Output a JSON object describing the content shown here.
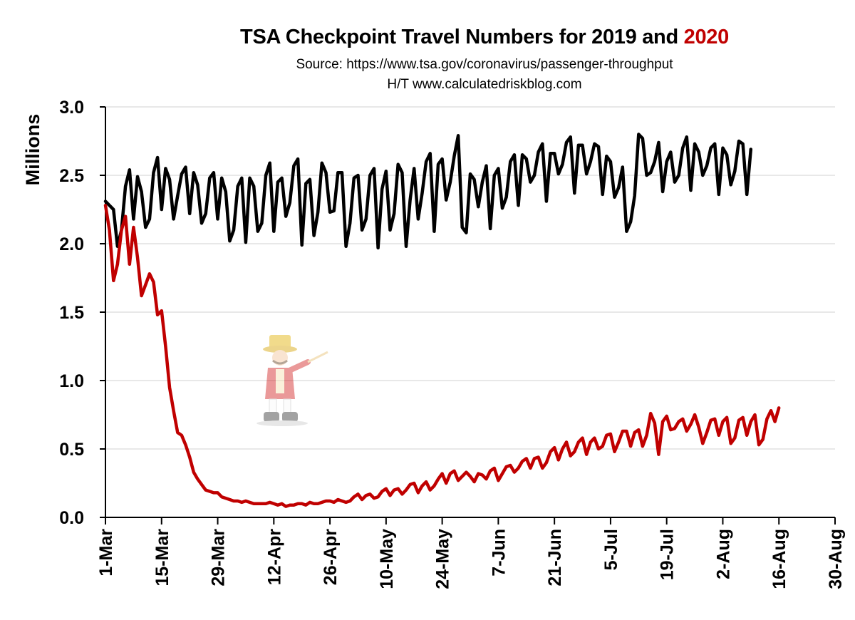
{
  "title": {
    "prefix": "TSA Checkpoint Travel Numbers for 2019 and ",
    "highlight": "2020",
    "highlight_color": "#c00000"
  },
  "subtitle_lines": [
    "Source: https://www.tsa.gov/coronavirus/passenger-throughput",
    "H/T www.calculatedriskblog.com"
  ],
  "watermark": {
    "icon": "ringmaster-mascot-icon"
  },
  "chart_data": {
    "type": "line",
    "title": "TSA Checkpoint Travel Numbers for 2019 and 2020",
    "ylabel": "Millions",
    "xlabel": "",
    "ylim": [
      0,
      3.0
    ],
    "yticks": [
      0.0,
      0.5,
      1.0,
      1.5,
      2.0,
      2.5,
      3.0
    ],
    "ytick_labels": [
      "0.0",
      "0.5",
      "1.0",
      "1.5",
      "2.0",
      "2.5",
      "3.0"
    ],
    "x_start_date": "2020-03-01",
    "x_end_date": "2020-08-30",
    "xtick_labels": [
      "1-Mar",
      "15-Mar",
      "29-Mar",
      "12-Apr",
      "26-Apr",
      "10-May",
      "24-May",
      "7-Jun",
      "21-Jun",
      "5-Jul",
      "19-Jul",
      "2-Aug",
      "16-Aug",
      "30-Aug"
    ],
    "xtick_dates": [
      "2020-03-01",
      "2020-03-15",
      "2020-03-29",
      "2020-04-12",
      "2020-04-26",
      "2020-05-10",
      "2020-05-24",
      "2020-06-07",
      "2020-06-21",
      "2020-07-05",
      "2020-07-19",
      "2020-08-02",
      "2020-08-16",
      "2020-08-30"
    ],
    "grid": "horizontal",
    "series": [
      {
        "name": "2019",
        "color": "#000000",
        "start_date": "2020-03-01",
        "values": [
          2.31,
          2.28,
          2.25,
          1.98,
          2.1,
          2.42,
          2.54,
          2.18,
          2.49,
          2.38,
          2.12,
          2.18,
          2.52,
          2.63,
          2.25,
          2.55,
          2.47,
          2.18,
          2.35,
          2.51,
          2.56,
          2.22,
          2.52,
          2.43,
          2.15,
          2.22,
          2.48,
          2.52,
          2.18,
          2.48,
          2.38,
          2.02,
          2.1,
          2.42,
          2.48,
          2.01,
          2.48,
          2.42,
          2.09,
          2.15,
          2.5,
          2.59,
          2.09,
          2.45,
          2.48,
          2.2,
          2.3,
          2.57,
          2.62,
          1.99,
          2.44,
          2.47,
          2.06,
          2.23,
          2.59,
          2.52,
          2.23,
          2.24,
          2.52,
          2.52,
          1.98,
          2.15,
          2.48,
          2.5,
          2.1,
          2.18,
          2.5,
          2.55,
          1.97,
          2.4,
          2.53,
          2.1,
          2.22,
          2.58,
          2.52,
          1.98,
          2.32,
          2.55,
          2.18,
          2.37,
          2.6,
          2.66,
          2.09,
          2.58,
          2.62,
          2.32,
          2.45,
          2.64,
          2.79,
          2.12,
          2.08,
          2.51,
          2.47,
          2.27,
          2.45,
          2.57,
          2.11,
          2.5,
          2.55,
          2.26,
          2.34,
          2.6,
          2.65,
          2.28,
          2.65,
          2.62,
          2.45,
          2.5,
          2.67,
          2.73,
          2.31,
          2.66,
          2.66,
          2.51,
          2.58,
          2.74,
          2.78,
          2.37,
          2.72,
          2.72,
          2.51,
          2.6,
          2.73,
          2.71,
          2.36,
          2.64,
          2.6,
          2.34,
          2.41,
          2.56,
          2.09,
          2.16,
          2.35,
          2.8,
          2.77,
          2.5,
          2.52,
          2.6,
          2.74,
          2.38,
          2.6,
          2.67,
          2.45,
          2.5,
          2.7,
          2.78,
          2.39,
          2.73,
          2.67,
          2.5,
          2.57,
          2.7,
          2.73,
          2.36,
          2.7,
          2.65,
          2.43,
          2.53,
          2.75,
          2.73,
          2.36,
          2.69
        ]
      },
      {
        "name": "2020",
        "color": "#c00000",
        "start_date": "2020-03-01",
        "values": [
          2.28,
          2.1,
          1.73,
          1.85,
          2.1,
          2.2,
          1.85,
          2.12,
          1.9,
          1.62,
          1.7,
          1.78,
          1.72,
          1.48,
          1.51,
          1.25,
          0.95,
          0.78,
          0.62,
          0.6,
          0.53,
          0.44,
          0.33,
          0.28,
          0.24,
          0.2,
          0.19,
          0.18,
          0.18,
          0.15,
          0.14,
          0.13,
          0.12,
          0.12,
          0.11,
          0.12,
          0.11,
          0.1,
          0.1,
          0.1,
          0.1,
          0.11,
          0.1,
          0.09,
          0.1,
          0.08,
          0.09,
          0.09,
          0.1,
          0.1,
          0.09,
          0.11,
          0.1,
          0.1,
          0.11,
          0.12,
          0.12,
          0.11,
          0.13,
          0.12,
          0.11,
          0.12,
          0.15,
          0.17,
          0.13,
          0.16,
          0.17,
          0.14,
          0.15,
          0.19,
          0.21,
          0.16,
          0.2,
          0.21,
          0.17,
          0.2,
          0.24,
          0.25,
          0.18,
          0.23,
          0.26,
          0.2,
          0.23,
          0.28,
          0.32,
          0.25,
          0.32,
          0.34,
          0.27,
          0.3,
          0.33,
          0.3,
          0.26,
          0.32,
          0.31,
          0.28,
          0.34,
          0.36,
          0.27,
          0.32,
          0.37,
          0.38,
          0.33,
          0.36,
          0.41,
          0.43,
          0.36,
          0.43,
          0.44,
          0.36,
          0.4,
          0.48,
          0.51,
          0.42,
          0.5,
          0.55,
          0.45,
          0.48,
          0.55,
          0.58,
          0.46,
          0.55,
          0.58,
          0.5,
          0.52,
          0.6,
          0.61,
          0.48,
          0.55,
          0.63,
          0.63,
          0.52,
          0.62,
          0.64,
          0.52,
          0.6,
          0.76,
          0.69,
          0.46,
          0.7,
          0.74,
          0.64,
          0.65,
          0.7,
          0.72,
          0.63,
          0.68,
          0.75,
          0.66,
          0.54,
          0.62,
          0.71,
          0.72,
          0.6,
          0.7,
          0.73,
          0.54,
          0.58,
          0.71,
          0.73,
          0.6,
          0.7,
          0.75,
          0.53,
          0.57,
          0.72,
          0.78,
          0.7,
          0.8
        ]
      }
    ]
  }
}
